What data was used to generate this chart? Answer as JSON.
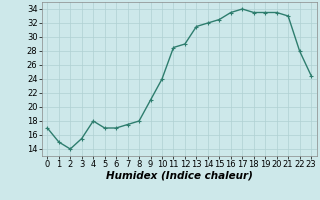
{
  "x": [
    0,
    1,
    2,
    3,
    4,
    5,
    6,
    7,
    8,
    9,
    10,
    11,
    12,
    13,
    14,
    15,
    16,
    17,
    18,
    19,
    20,
    21,
    22,
    23
  ],
  "y": [
    17,
    15,
    14,
    15.5,
    18,
    17,
    17,
    17.5,
    18,
    21,
    24,
    28.5,
    29,
    31.5,
    32,
    32.5,
    33.5,
    34,
    33.5,
    33.5,
    33.5,
    33,
    28,
    24.5
  ],
  "line_color": "#2e7d6e",
  "marker": "+",
  "marker_size": 3,
  "bg_color": "#cde8ea",
  "grid_color": "#b0d0d2",
  "xlabel": "Humidex (Indice chaleur)",
  "xlim": [
    -0.5,
    23.5
  ],
  "ylim": [
    13,
    35
  ],
  "yticks": [
    14,
    16,
    18,
    20,
    22,
    24,
    26,
    28,
    30,
    32,
    34
  ],
  "xticks": [
    0,
    1,
    2,
    3,
    4,
    5,
    6,
    7,
    8,
    9,
    10,
    11,
    12,
    13,
    14,
    15,
    16,
    17,
    18,
    19,
    20,
    21,
    22,
    23
  ],
  "xlabel_fontsize": 7.5,
  "tick_fontsize": 6,
  "line_width": 1.0
}
